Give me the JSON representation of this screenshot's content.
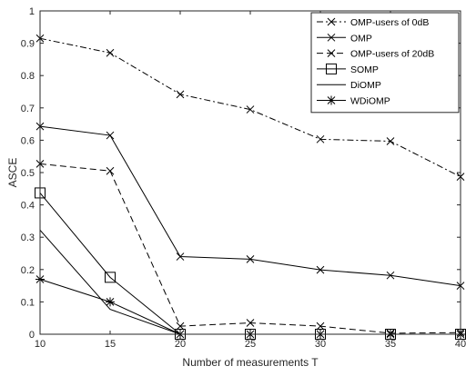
{
  "chart_data": {
    "type": "line",
    "title": "",
    "xlabel": "Number of measurements T",
    "ylabel": "ASCE",
    "x": [
      10,
      15,
      20,
      25,
      30,
      35,
      40
    ],
    "xlim": [
      10,
      40
    ],
    "ylim": [
      0,
      1
    ],
    "xticks": [
      "10",
      "15",
      "20",
      "25",
      "30",
      "35",
      "40"
    ],
    "yticks": [
      "0",
      "0.1",
      "0.2",
      "0.3",
      "0.4",
      "0.5",
      "0.6",
      "0.7",
      "0.8",
      "0.9",
      "1"
    ],
    "grid": false,
    "legend_position": "top-right",
    "series": [
      {
        "name": "OMP-users of 0dB",
        "values": [
          0.915,
          0.87,
          0.742,
          0.695,
          0.603,
          0.597,
          0.487
        ],
        "line": "dashdot",
        "marker": "x",
        "color": "#000000"
      },
      {
        "name": "OMP",
        "values": [
          0.643,
          0.615,
          0.24,
          0.232,
          0.199,
          0.182,
          0.15
        ],
        "line": "solid",
        "marker": "x",
        "color": "#000000"
      },
      {
        "name": "OMP-users of 20dB",
        "values": [
          0.527,
          0.505,
          0.025,
          0.035,
          0.025,
          0.003,
          0.005
        ],
        "line": "dashed",
        "marker": "x",
        "color": "#000000"
      },
      {
        "name": "SOMP",
        "values": [
          0.437,
          0.176,
          0.0,
          0.0,
          0.0,
          0.0,
          0.0
        ],
        "line": "solid",
        "marker": "square",
        "color": "#000000"
      },
      {
        "name": "DiOMP",
        "values": [
          0.322,
          0.077,
          0.0,
          0.0,
          0.0,
          0.0,
          0.0
        ],
        "line": "solid",
        "marker": "none",
        "color": "#000000"
      },
      {
        "name": "WDiOMP",
        "values": [
          0.17,
          0.1,
          0.0,
          0.0,
          0.0,
          0.0,
          0.0
        ],
        "line": "solid",
        "marker": "asterisk",
        "color": "#000000"
      }
    ]
  }
}
